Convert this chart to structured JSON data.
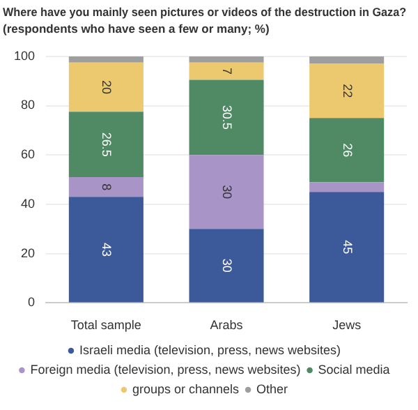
{
  "chart_data": {
    "type": "bar",
    "stacked": true,
    "title": "Where have you mainly seen pictures or videos of the destruction in Gaza?",
    "subtitle": "(respondents who have seen a few or many; %)",
    "categories": [
      "Total sample",
      "Arabs",
      "Jews"
    ],
    "series": [
      {
        "name": "Israeli media (television, press, news websites)",
        "color": "#3c5a99",
        "values": [
          43,
          30,
          45
        ],
        "value_labels": [
          "43",
          "30",
          "45"
        ]
      },
      {
        "name": "Foreign media (television, press, news websites)",
        "color": "#a994c8",
        "values": [
          8,
          30,
          4
        ],
        "value_labels": [
          "8",
          "30",
          null
        ]
      },
      {
        "name": "Social media",
        "color": "#4f8a64",
        "values": [
          26.5,
          30.5,
          26
        ],
        "value_labels": [
          "26.5",
          "30.5",
          "26"
        ]
      },
      {
        "name": "groups or channels",
        "color": "#ecc96e",
        "values": [
          20,
          7,
          22
        ],
        "value_labels": [
          "20",
          "7",
          "22"
        ]
      },
      {
        "name": "Other",
        "color": "#9e9e9e",
        "values": [
          2.5,
          2.5,
          3
        ],
        "value_labels": [
          null,
          null,
          null
        ]
      }
    ],
    "ylim": [
      0,
      100
    ],
    "yticks": [
      0,
      20,
      40,
      60,
      80,
      100
    ],
    "grid": "y",
    "legend": "bottom"
  }
}
